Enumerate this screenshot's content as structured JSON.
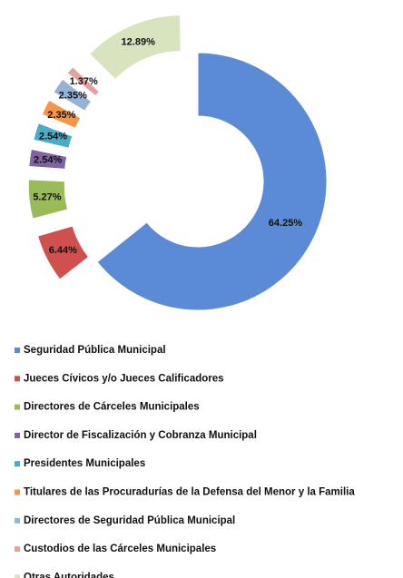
{
  "chart_data": {
    "type": "donut",
    "categories": [
      "Seguridad Pública Municipal",
      "Jueces Cívicos y/o Jueces Calificadores",
      "Directores de Cárceles Municipales",
      "Director de Fiscalización y Cobranza Municipal",
      "Presidentes Municipales",
      "Titulares de las Procuradurías de la Defensa del Menor y la Familia",
      "Directores de Seguridad Pública Municipal",
      "Custodios de las Cárceles Municipales",
      "Otras Autoridades"
    ],
    "values": [
      64.25,
      6.44,
      5.27,
      2.54,
      2.54,
      2.35,
      2.35,
      1.37,
      12.89
    ],
    "value_labels": [
      "64.25%",
      "6.44%",
      "5.27%",
      "2.54%",
      "2.54%",
      "2.35%",
      "2.35%",
      "1.37%",
      "12.89%"
    ],
    "colors": [
      "#5b8bd6",
      "#d0504d",
      "#9bbb59",
      "#8064a2",
      "#4bacc6",
      "#f79646",
      "#95b3d7",
      "#e6a0a0",
      "#d7e4bd"
    ],
    "legend": "bottom"
  }
}
